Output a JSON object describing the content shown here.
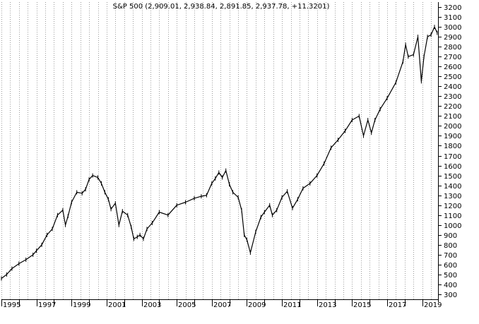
{
  "chart_data": {
    "type": "line",
    "title": "S&P 500 (2,909.01, 2,938.84, 2,891.85, 2,937.78, +11.3201)",
    "xlabel": "",
    "ylabel": "",
    "xlim": [
      1995.0,
      2019.9
    ],
    "ylim": [
      250,
      3250
    ],
    "y_ticks": [
      300,
      400,
      500,
      600,
      700,
      800,
      900,
      1000,
      1100,
      1200,
      1300,
      1400,
      1500,
      1600,
      1700,
      1800,
      1900,
      2000,
      2100,
      2200,
      2300,
      2400,
      2500,
      2600,
      2700,
      2800,
      2900,
      3000,
      3100,
      3200
    ],
    "x_ticks": [
      1995,
      1997,
      1999,
      2001,
      2003,
      2005,
      2007,
      2009,
      2011,
      2013,
      2015,
      2017,
      2019
    ],
    "y_axis_position": "right",
    "grid": "vertical-dotted",
    "series": [
      {
        "color": "#000000",
        "x": [
          1995.0,
          1995.3,
          1995.6,
          1996.0,
          1996.4,
          1996.8,
          1997.0,
          1997.3,
          1997.6,
          1997.9,
          1998.2,
          1998.5,
          1998.65,
          1998.8,
          1999.0,
          1999.3,
          1999.6,
          1999.8,
          2000.0,
          2000.2,
          2000.5,
          2000.7,
          2000.9,
          2001.1,
          2001.25,
          2001.5,
          2001.7,
          2001.9,
          2002.2,
          2002.4,
          2002.55,
          2002.75,
          2002.9,
          2003.1,
          2003.3,
          2003.6,
          2004.0,
          2004.5,
          2005.0,
          2005.5,
          2006.0,
          2006.4,
          2006.7,
          2007.0,
          2007.2,
          2007.4,
          2007.6,
          2007.8,
          2008.0,
          2008.2,
          2008.5,
          2008.7,
          2008.85,
          2009.0,
          2009.2,
          2009.5,
          2009.8,
          2010.0,
          2010.3,
          2010.45,
          2010.7,
          2011.0,
          2011.3,
          2011.6,
          2011.9,
          2012.2,
          2012.6,
          2013.0,
          2013.4,
          2013.8,
          2014.2,
          2014.6,
          2015.0,
          2015.4,
          2015.65,
          2015.9,
          2016.1,
          2016.3,
          2016.6,
          2017.0,
          2017.5,
          2017.9,
          2018.05,
          2018.2,
          2018.5,
          2018.75,
          2018.95,
          2019.1,
          2019.3,
          2019.5,
          2019.7,
          2019.85
        ],
        "values": [
          460,
          500,
          560,
          610,
          650,
          700,
          740,
          800,
          900,
          960,
          1100,
          1150,
          1000,
          1090,
          1230,
          1330,
          1320,
          1360,
          1460,
          1500,
          1480,
          1420,
          1330,
          1260,
          1160,
          1220,
          1000,
          1140,
          1100,
          980,
          860,
          880,
          900,
          860,
          960,
          1020,
          1130,
          1100,
          1200,
          1230,
          1270,
          1290,
          1300,
          1420,
          1470,
          1530,
          1480,
          1550,
          1410,
          1330,
          1280,
          1150,
          900,
          850,
          720,
          930,
          1080,
          1130,
          1200,
          1100,
          1150,
          1280,
          1340,
          1170,
          1260,
          1370,
          1420,
          1500,
          1620,
          1780,
          1860,
          1950,
          2060,
          2100,
          1900,
          2060,
          1930,
          2060,
          2170,
          2280,
          2440,
          2650,
          2820,
          2700,
          2720,
          2900,
          2450,
          2700,
          2900,
          2920,
          3000,
          2940
        ]
      }
    ]
  }
}
